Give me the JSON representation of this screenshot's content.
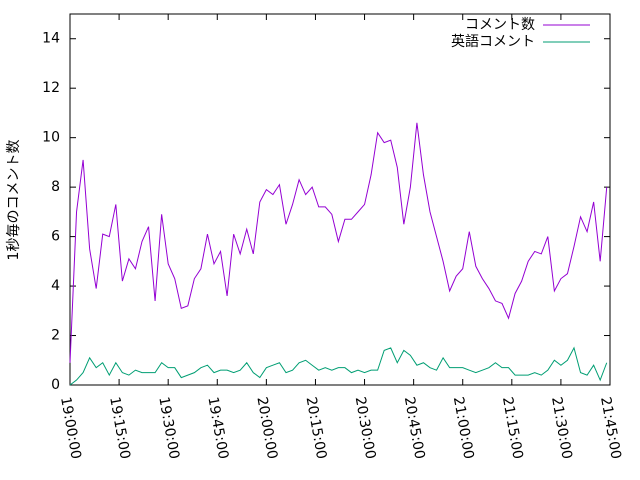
{
  "chart_data": {
    "type": "line",
    "ylabel": "1秒毎のコメント数",
    "x": [
      "19:00:00",
      "19:02:00",
      "19:04:00",
      "19:06:00",
      "19:08:00",
      "19:10:00",
      "19:12:00",
      "19:14:00",
      "19:16:00",
      "19:18:00",
      "19:20:00",
      "19:22:00",
      "19:24:00",
      "19:26:00",
      "19:28:00",
      "19:30:00",
      "19:32:00",
      "19:34:00",
      "19:36:00",
      "19:38:00",
      "19:40:00",
      "19:42:00",
      "19:44:00",
      "19:46:00",
      "19:48:00",
      "19:50:00",
      "19:52:00",
      "19:54:00",
      "19:56:00",
      "19:58:00",
      "20:00:00",
      "20:02:00",
      "20:04:00",
      "20:06:00",
      "20:08:00",
      "20:10:00",
      "20:12:00",
      "20:14:00",
      "20:16:00",
      "20:18:00",
      "20:20:00",
      "20:22:00",
      "20:24:00",
      "20:26:00",
      "20:28:00",
      "20:30:00",
      "20:32:00",
      "20:34:00",
      "20:36:00",
      "20:38:00",
      "20:40:00",
      "20:42:00",
      "20:44:00",
      "20:46:00",
      "20:48:00",
      "20:50:00",
      "20:52:00",
      "20:54:00",
      "20:56:00",
      "20:58:00",
      "21:00:00",
      "21:02:00",
      "21:04:00",
      "21:06:00",
      "21:08:00",
      "21:10:00",
      "21:12:00",
      "21:14:00",
      "21:16:00",
      "21:18:00",
      "21:20:00",
      "21:22:00",
      "21:24:00",
      "21:26:00",
      "21:28:00",
      "21:30:00",
      "21:32:00",
      "21:34:00",
      "21:36:00",
      "21:38:00",
      "21:40:00",
      "21:42:00",
      "21:44:00"
    ],
    "series": [
      {
        "name": "コメント数",
        "color": "#9400d3",
        "values": [
          0.9,
          7.0,
          9.1,
          5.5,
          3.9,
          6.1,
          6.0,
          7.3,
          4.2,
          5.1,
          4.7,
          5.8,
          6.4,
          3.4,
          6.9,
          4.9,
          4.3,
          3.1,
          3.2,
          4.3,
          4.7,
          6.1,
          4.9,
          5.4,
          3.6,
          6.1,
          5.3,
          6.3,
          5.3,
          7.4,
          7.9,
          7.7,
          8.1,
          6.5,
          7.3,
          8.3,
          7.7,
          8.0,
          7.2,
          7.2,
          6.9,
          5.8,
          6.7,
          6.7,
          7.0,
          7.3,
          8.5,
          10.2,
          9.8,
          9.9,
          8.8,
          6.5,
          8.0,
          10.6,
          8.5,
          7.0,
          6.0,
          5.0,
          3.8,
          4.4,
          4.7,
          6.2,
          4.8,
          4.3,
          3.9,
          3.4,
          3.3,
          2.7,
          3.7,
          4.2,
          5.0,
          5.4,
          5.3,
          6.0,
          3.8,
          4.3,
          4.5,
          5.6,
          6.8,
          6.2,
          7.4,
          5.0,
          8.0
        ]
      },
      {
        "name": "英語コメント",
        "color": "#009e73",
        "values": [
          0,
          0.2,
          0.5,
          1.1,
          0.7,
          0.9,
          0.4,
          0.9,
          0.5,
          0.4,
          0.6,
          0.5,
          0.5,
          0.5,
          0.9,
          0.7,
          0.7,
          0.3,
          0.4,
          0.5,
          0.7,
          0.8,
          0.5,
          0.6,
          0.6,
          0.5,
          0.6,
          0.9,
          0.5,
          0.3,
          0.7,
          0.8,
          0.9,
          0.5,
          0.6,
          0.9,
          1.0,
          0.8,
          0.6,
          0.7,
          0.6,
          0.7,
          0.7,
          0.5,
          0.6,
          0.5,
          0.6,
          0.6,
          1.4,
          1.5,
          0.9,
          1.4,
          1.2,
          0.8,
          0.9,
          0.7,
          0.6,
          1.1,
          0.7,
          0.7,
          0.7,
          0.6,
          0.5,
          0.6,
          0.7,
          0.9,
          0.7,
          0.7,
          0.4,
          0.4,
          0.4,
          0.5,
          0.4,
          0.6,
          1.0,
          0.8,
          1.0,
          1.5,
          0.5,
          0.4,
          0.8,
          0.2,
          0.9
        ]
      }
    ],
    "xlim": [
      "19:00:00",
      "21:45:00"
    ],
    "xticks": [
      "19:00:00",
      "19:15:00",
      "19:30:00",
      "19:45:00",
      "20:00:00",
      "20:15:00",
      "20:30:00",
      "20:45:00",
      "21:00:00",
      "21:15:00",
      "21:30:00",
      "21:45:00"
    ],
    "ylim": [
      0,
      15
    ],
    "yticks": [
      0,
      2,
      4,
      6,
      8,
      10,
      12,
      14
    ],
    "legend": "top-right"
  }
}
